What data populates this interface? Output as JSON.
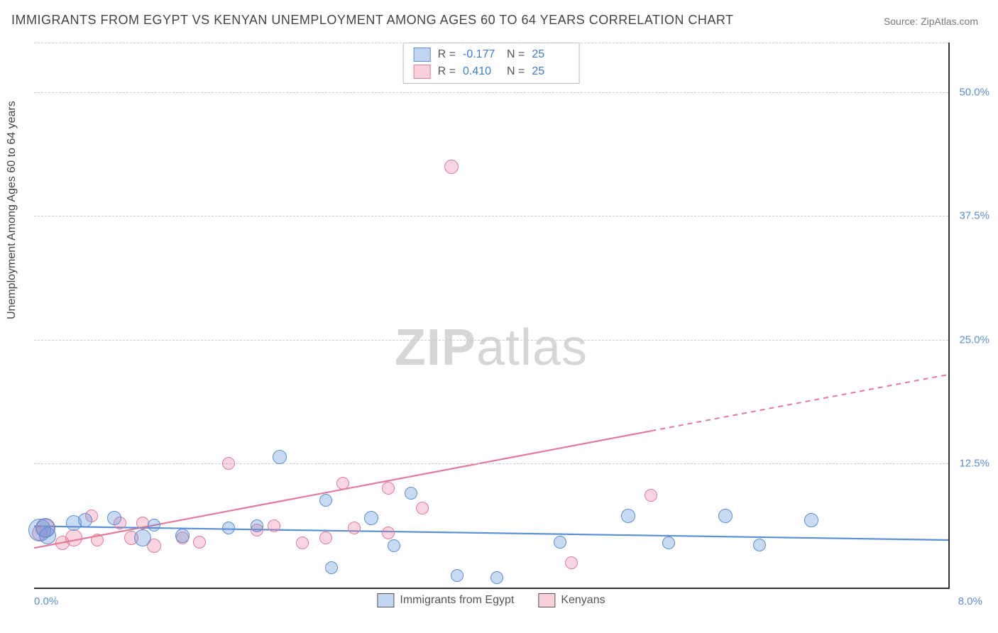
{
  "title": "IMMIGRANTS FROM EGYPT VS KENYAN UNEMPLOYMENT AMONG AGES 60 TO 64 YEARS CORRELATION CHART",
  "source": "Source: ZipAtlas.com",
  "watermark_bold": "ZIP",
  "watermark_rest": "atlas",
  "chart": {
    "type": "scatter-with-trend",
    "ylabel": "Unemployment Among Ages 60 to 64 years",
    "xlim": [
      0.0,
      8.0
    ],
    "ylim": [
      0.0,
      55.0
    ],
    "ytick_values": [
      12.5,
      25.0,
      37.5,
      50.0
    ],
    "ytick_labels": [
      "12.5%",
      "25.0%",
      "37.5%",
      "50.0%"
    ],
    "xtick_left": "0.0%",
    "xtick_right": "8.0%",
    "grid_color": "#cccccc",
    "axis_color": "#333333",
    "background_color": "#ffffff",
    "marker_radius_base": 9,
    "stats": [
      {
        "color": "blue",
        "R": "-0.177",
        "N": "25"
      },
      {
        "color": "pink",
        "R": "0.410",
        "N": "25"
      }
    ],
    "legend_x": [
      {
        "color": "blue",
        "label": "Immigrants from Egypt"
      },
      {
        "color": "pink",
        "label": "Kenyans"
      }
    ],
    "series": {
      "blue": {
        "color_fill": "rgba(100,150,220,0.35)",
        "color_stroke": "#5b8fd6",
        "trend": {
          "x1": 0.0,
          "y1": 6.2,
          "x2": 8.0,
          "y2": 4.8,
          "dash_after_x": null
        },
        "points": [
          {
            "x": 0.05,
            "y": 5.8,
            "r": 16
          },
          {
            "x": 0.1,
            "y": 6.0,
            "r": 14
          },
          {
            "x": 0.12,
            "y": 5.2,
            "r": 12
          },
          {
            "x": 0.35,
            "y": 6.5,
            "r": 11
          },
          {
            "x": 0.45,
            "y": 6.8,
            "r": 10
          },
          {
            "x": 0.7,
            "y": 7.0,
            "r": 10
          },
          {
            "x": 0.95,
            "y": 5.0,
            "r": 12
          },
          {
            "x": 1.05,
            "y": 6.3,
            "r": 9
          },
          {
            "x": 1.3,
            "y": 5.2,
            "r": 10
          },
          {
            "x": 1.7,
            "y": 6.0,
            "r": 9
          },
          {
            "x": 1.95,
            "y": 6.2,
            "r": 9
          },
          {
            "x": 2.15,
            "y": 13.2,
            "r": 10
          },
          {
            "x": 2.55,
            "y": 8.8,
            "r": 9
          },
          {
            "x": 2.6,
            "y": 2.0,
            "r": 9
          },
          {
            "x": 2.95,
            "y": 7.0,
            "r": 10
          },
          {
            "x": 3.3,
            "y": 9.5,
            "r": 9
          },
          {
            "x": 3.15,
            "y": 4.2,
            "r": 9
          },
          {
            "x": 3.7,
            "y": 1.2,
            "r": 9
          },
          {
            "x": 4.05,
            "y": 1.0,
            "r": 9
          },
          {
            "x": 5.2,
            "y": 7.2,
            "r": 10
          },
          {
            "x": 5.55,
            "y": 4.5,
            "r": 9
          },
          {
            "x": 6.05,
            "y": 7.2,
            "r": 10
          },
          {
            "x": 6.35,
            "y": 4.3,
            "r": 9
          },
          {
            "x": 6.8,
            "y": 6.8,
            "r": 10
          },
          {
            "x": 4.6,
            "y": 4.6,
            "r": 9
          }
        ]
      },
      "pink": {
        "color_fill": "rgba(235,120,150,0.30)",
        "color_stroke": "#e27a98",
        "trend": {
          "x1": 0.0,
          "y1": 4.0,
          "x2": 8.0,
          "y2": 21.5,
          "dash_after_x": 5.4
        },
        "points": [
          {
            "x": 0.05,
            "y": 5.5,
            "r": 11
          },
          {
            "x": 0.1,
            "y": 6.0,
            "r": 13
          },
          {
            "x": 0.25,
            "y": 4.5,
            "r": 10
          },
          {
            "x": 0.35,
            "y": 5.0,
            "r": 12
          },
          {
            "x": 0.5,
            "y": 7.2,
            "r": 9
          },
          {
            "x": 0.55,
            "y": 4.8,
            "r": 9
          },
          {
            "x": 0.75,
            "y": 6.5,
            "r": 9
          },
          {
            "x": 0.85,
            "y": 5.0,
            "r": 10
          },
          {
            "x": 0.95,
            "y": 6.5,
            "r": 9
          },
          {
            "x": 1.05,
            "y": 4.2,
            "r": 10
          },
          {
            "x": 1.3,
            "y": 5.0,
            "r": 9
          },
          {
            "x": 1.45,
            "y": 4.6,
            "r": 9
          },
          {
            "x": 1.7,
            "y": 12.5,
            "r": 9
          },
          {
            "x": 1.95,
            "y": 5.8,
            "r": 9
          },
          {
            "x": 2.1,
            "y": 6.2,
            "r": 9
          },
          {
            "x": 2.35,
            "y": 4.5,
            "r": 9
          },
          {
            "x": 2.7,
            "y": 10.5,
            "r": 9
          },
          {
            "x": 2.8,
            "y": 6.0,
            "r": 9
          },
          {
            "x": 3.1,
            "y": 10.0,
            "r": 9
          },
          {
            "x": 3.1,
            "y": 5.5,
            "r": 9
          },
          {
            "x": 3.65,
            "y": 42.5,
            "r": 10
          },
          {
            "x": 4.7,
            "y": 2.5,
            "r": 9
          },
          {
            "x": 5.4,
            "y": 9.3,
            "r": 9
          },
          {
            "x": 3.4,
            "y": 8.0,
            "r": 9
          },
          {
            "x": 2.55,
            "y": 5.0,
            "r": 9
          }
        ]
      }
    }
  }
}
